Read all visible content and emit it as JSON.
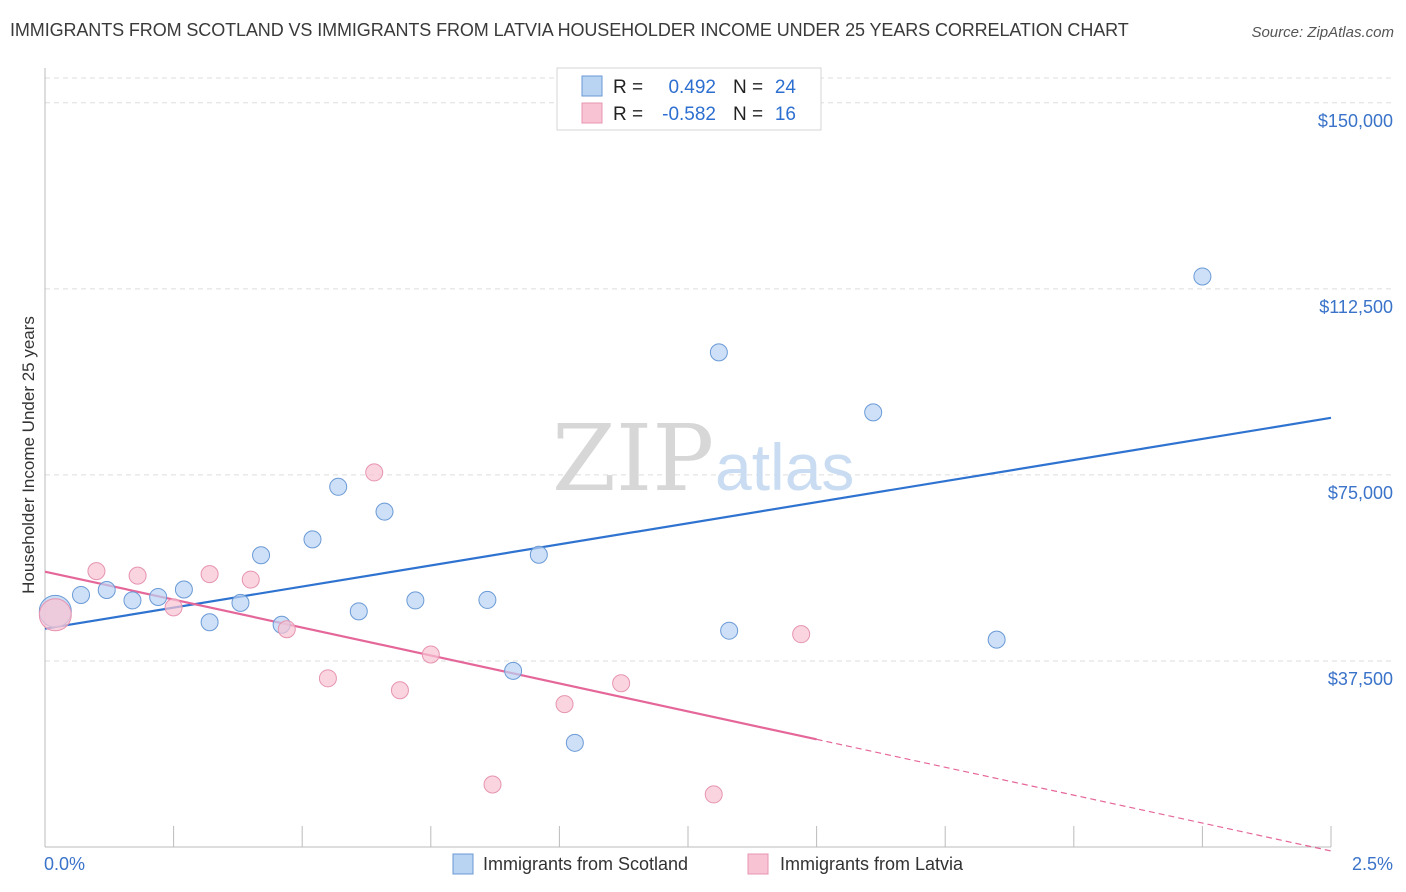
{
  "title": "IMMIGRANTS FROM SCOTLAND VS IMMIGRANTS FROM LATVIA HOUSEHOLDER INCOME UNDER 25 YEARS CORRELATION CHART",
  "source": "Source: ZipAtlas.com",
  "watermark": {
    "zip": "ZIP",
    "atlas": "atlas"
  },
  "legend": {
    "rows": [
      {
        "r_label": "R =",
        "r_value": "0.492",
        "n_label": "N =",
        "n_value": "24",
        "color": "#a9c8f0"
      },
      {
        "r_label": "R =",
        "r_value": "-0.582",
        "n_label": "N =",
        "n_value": "16",
        "color": "#f5b5c8"
      }
    ]
  },
  "bottom_legend": [
    "Immigrants from Scotland",
    "Immigrants from Latvia"
  ],
  "colors": {
    "scotland_fill": "#b9d3f3",
    "scotland_stroke": "#6a9ad6",
    "scotland_line": "#2f73d0",
    "latvia_fill": "#f8c3d3",
    "latvia_stroke": "#e694b0",
    "latvia_line": "#e5679a",
    "tick_label": "#3a73c9",
    "grid": "#dddddd"
  },
  "chart_data": {
    "type": "scatter",
    "title": "IMMIGRANTS FROM SCOTLAND VS IMMIGRANTS FROM LATVIA HOUSEHOLDER INCOME UNDER 25 YEARS CORRELATION CHART",
    "xlabel": "",
    "ylabel": "Householder Income Under 25 years",
    "xlim": [
      0,
      2.5
    ],
    "ylim": [
      0,
      155000
    ],
    "x_tick_labels": [
      "0.0%",
      "2.5%"
    ],
    "y_ticks": [
      37500,
      75000,
      112500,
      150000
    ],
    "y_tick_labels": [
      "$37,500",
      "$75,000",
      "$112,500",
      "$150,000"
    ],
    "grid": true,
    "legend_position": "top-center",
    "series": [
      {
        "name": "Immigrants from Scotland",
        "r": 0.492,
        "n": 24,
        "points": [
          {
            "x": 0.02,
            "y": 47500,
            "big": true
          },
          {
            "x": 0.07,
            "y": 50800
          },
          {
            "x": 0.12,
            "y": 51800
          },
          {
            "x": 0.17,
            "y": 49700
          },
          {
            "x": 0.22,
            "y": 50400
          },
          {
            "x": 0.27,
            "y": 51900
          },
          {
            "x": 0.32,
            "y": 45300
          },
          {
            "x": 0.38,
            "y": 49200
          },
          {
            "x": 0.42,
            "y": 58800
          },
          {
            "x": 0.46,
            "y": 44800
          },
          {
            "x": 0.52,
            "y": 62000
          },
          {
            "x": 0.57,
            "y": 72600
          },
          {
            "x": 0.61,
            "y": 47500
          },
          {
            "x": 0.66,
            "y": 67600
          },
          {
            "x": 0.72,
            "y": 49700
          },
          {
            "x": 0.86,
            "y": 49800
          },
          {
            "x": 0.91,
            "y": 35500
          },
          {
            "x": 0.96,
            "y": 58900
          },
          {
            "x": 1.03,
            "y": 21000
          },
          {
            "x": 1.31,
            "y": 99700
          },
          {
            "x": 1.33,
            "y": 43600
          },
          {
            "x": 1.61,
            "y": 87600
          },
          {
            "x": 1.85,
            "y": 41800
          },
          {
            "x": 2.25,
            "y": 115000
          }
        ],
        "trend": {
          "x": [
            0.0,
            2.5
          ],
          "y": [
            44000,
            86500
          ]
        }
      },
      {
        "name": "Immigrants from Latvia",
        "r": -0.582,
        "n": 16,
        "points": [
          {
            "x": 0.02,
            "y": 46800,
            "big": true
          },
          {
            "x": 0.1,
            "y": 55600
          },
          {
            "x": 0.18,
            "y": 54700
          },
          {
            "x": 0.25,
            "y": 48300
          },
          {
            "x": 0.32,
            "y": 55000
          },
          {
            "x": 0.4,
            "y": 53900
          },
          {
            "x": 0.47,
            "y": 43900
          },
          {
            "x": 0.55,
            "y": 34000
          },
          {
            "x": 0.64,
            "y": 75500
          },
          {
            "x": 0.69,
            "y": 31600
          },
          {
            "x": 0.75,
            "y": 38800
          },
          {
            "x": 0.87,
            "y": 12600
          },
          {
            "x": 1.01,
            "y": 28800
          },
          {
            "x": 1.12,
            "y": 33000
          },
          {
            "x": 1.3,
            "y": 10600
          },
          {
            "x": 1.47,
            "y": 42900
          }
        ],
        "trend": {
          "x": [
            0.0,
            1.5
          ],
          "y": [
            55500,
            21700
          ]
        },
        "trend_dashed": {
          "x": [
            1.5,
            2.5
          ],
          "y": [
            21700,
            -800
          ]
        }
      }
    ]
  }
}
